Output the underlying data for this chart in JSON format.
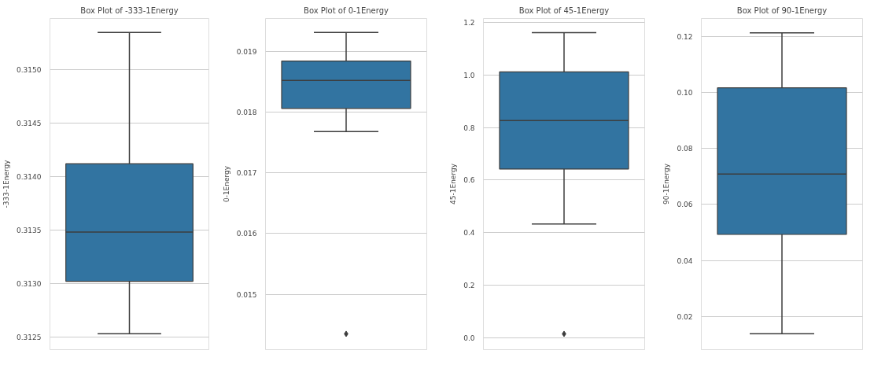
{
  "chart_data": [
    {
      "type": "box",
      "title": "Box Plot of -333-1Energy",
      "ylabel": "-333-1Energy",
      "categories": [
        null
      ],
      "color": "#3274a1",
      "grid": "y",
      "tick_labels": "y",
      "ylim": [
        0.31238,
        0.31548
      ],
      "yticks": [
        {
          "value": 0.3125,
          "label": "0.3125"
        },
        {
          "value": 0.313,
          "label": "0.3130"
        },
        {
          "value": 0.3135,
          "label": "0.3135"
        },
        {
          "value": 0.314,
          "label": "0.3140"
        },
        {
          "value": 0.3145,
          "label": "0.3145"
        },
        {
          "value": 0.315,
          "label": "0.3150"
        }
      ],
      "boxes": [
        {
          "low": 0.31253,
          "q1": 0.31302,
          "median": 0.31348,
          "q3": 0.31412,
          "high": 0.31535
        }
      ]
    },
    {
      "type": "box",
      "title": "Box Plot of 0-1Energy",
      "ylabel": "0-1Energy",
      "categories": [
        null
      ],
      "color": "#3274a1",
      "grid": "y",
      "tick_labels": "y",
      "ylim": [
        0.01409,
        0.01954
      ],
      "yticks": [
        0.015,
        0.016,
        0.017,
        0.018,
        0.019
      ],
      "boxes": [
        {
          "low": 0.01768,
          "q1": 0.01806,
          "median": 0.01852,
          "q3": 0.01884,
          "high": 0.01931,
          "outliers": [
            0.01435
          ]
        }
      ]
    },
    {
      "type": "box",
      "title": "Box Plot of 45-1Energy",
      "ylabel": "45-1Energy",
      "categories": [
        null
      ],
      "color": "#3274a1",
      "grid": "y",
      "tick_labels": "y",
      "ylim": [
        -0.045,
        1.215
      ],
      "yticks": [
        {
          "value": 0,
          "label": "0.0"
        },
        0.2,
        0.4,
        0.6,
        0.8,
        {
          "value": 1,
          "label": "1.0"
        },
        1.2
      ],
      "boxes": [
        {
          "low": 0.433,
          "q1": 0.642,
          "median": 0.827,
          "q3": 1.012,
          "high": 1.161,
          "outliers": [
            0.015
          ]
        }
      ]
    },
    {
      "type": "box",
      "title": "Box Plot of 90-1Energy",
      "ylabel": "90-1Energy",
      "categories": [
        null
      ],
      "color": "#3274a1",
      "grid": "y",
      "tick_labels": "y",
      "ylim": [
        0.0081,
        0.1265
      ],
      "yticks": [
        0.02,
        0.04,
        0.06,
        0.08,
        {
          "value": 0.1,
          "label": "0.10"
        },
        0.12
      ],
      "boxes": [
        {
          "low": 0.0138,
          "q1": 0.0493,
          "median": 0.0709,
          "q3": 0.1017,
          "high": 0.1214
        }
      ]
    }
  ]
}
